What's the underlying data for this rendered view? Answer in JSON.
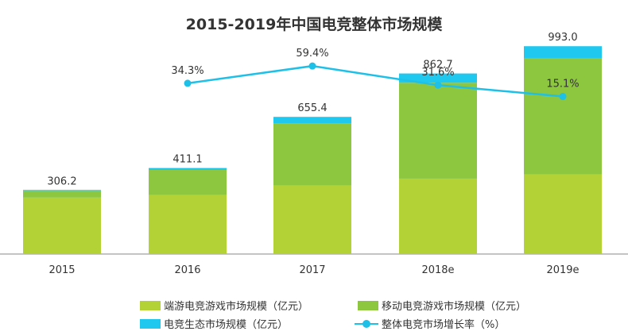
{
  "chart_data": {
    "type": "bar",
    "title": "2015-2019年中国电竞整体市场规模",
    "categories": [
      "2015",
      "2016",
      "2017",
      "2018e",
      "2019e"
    ],
    "totals": [
      "306.2",
      "411.1",
      "655.4",
      "862.7",
      "993.0"
    ],
    "series": [
      {
        "name": "端游电竞游戏市场规模（亿元）",
        "values": [
          269.8,
          282.0,
          327.2,
          360.5,
          380.0
        ],
        "color": "#b2d235"
      },
      {
        "name": "移动电竞游戏市场规模（亿元）",
        "values": [
          32.2,
          120.0,
          297.2,
          458.0,
          557.0
        ],
        "color": "#8dc63f"
      },
      {
        "name": "电竞生态市场规模（亿元）",
        "values": [
          4.2,
          9.1,
          31.0,
          44.2,
          56.0
        ],
        "color": "#1fc8ef"
      }
    ],
    "line_series": {
      "name": "整体电竞市场增长率（%）",
      "categories": [
        "2016",
        "2017",
        "2018e",
        "2019e"
      ],
      "values": [
        34.3,
        59.4,
        31.6,
        15.1
      ],
      "labels": [
        "34.3%",
        "59.4%",
        "31.6%",
        "15.1%"
      ],
      "color": "#1fc0e8"
    },
    "ylim": [
      0,
      1100
    ],
    "grid": false,
    "legend_position": "bottom"
  }
}
